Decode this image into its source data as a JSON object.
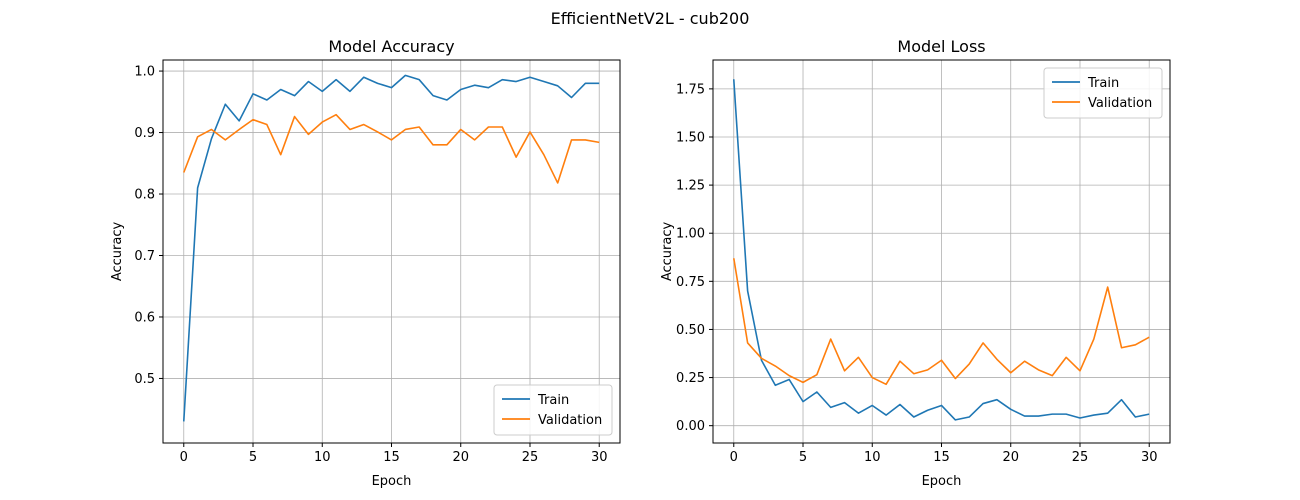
{
  "figure": {
    "title": "EfficientNetV2L - cub200"
  },
  "colors": {
    "train": "#1f77b4",
    "validation": "#ff7f0e",
    "grid": "#b0b0b0",
    "axes": "#000000"
  },
  "chart_data": [
    {
      "type": "line",
      "title": "Model Accuracy",
      "xlabel": "Epoch",
      "ylabel": "Accuracy",
      "xlim": [
        -1.5,
        31.5
      ],
      "ylim": [
        0.395,
        1.018
      ],
      "xticks": [
        0,
        5,
        10,
        15,
        20,
        25,
        30
      ],
      "yticks": [
        0.5,
        0.6,
        0.7,
        0.8,
        0.9,
        1.0
      ],
      "ytick_labels": [
        "0.5",
        "0.6",
        "0.7",
        "0.8",
        "0.9",
        "1.0"
      ],
      "grid": true,
      "legend": "lower-right",
      "x": [
        0,
        1,
        2,
        3,
        4,
        5,
        6,
        7,
        8,
        9,
        10,
        11,
        12,
        13,
        14,
        15,
        16,
        17,
        18,
        19,
        20,
        21,
        22,
        23,
        24,
        25,
        26,
        27,
        28,
        29,
        30
      ],
      "series": [
        {
          "name": "Train",
          "color": "#1f77b4",
          "values": [
            0.43,
            0.81,
            0.89,
            0.946,
            0.919,
            0.963,
            0.953,
            0.97,
            0.96,
            0.983,
            0.967,
            0.986,
            0.967,
            0.99,
            0.98,
            0.973,
            0.993,
            0.986,
            0.96,
            0.953,
            0.97,
            0.977,
            0.973,
            0.986,
            0.983,
            0.99,
            0.983,
            0.976,
            0.957,
            0.98,
            0.98
          ]
        },
        {
          "name": "Validation",
          "color": "#ff7f0e",
          "values": [
            0.835,
            0.893,
            0.905,
            0.888,
            0.905,
            0.921,
            0.913,
            0.864,
            0.926,
            0.897,
            0.917,
            0.929,
            0.905,
            0.913,
            0.901,
            0.888,
            0.905,
            0.909,
            0.88,
            0.88,
            0.905,
            0.888,
            0.909,
            0.909,
            0.86,
            0.901,
            0.864,
            0.818,
            0.888,
            0.888,
            0.884
          ]
        }
      ]
    },
    {
      "type": "line",
      "title": "Model Loss",
      "xlabel": "Epoch",
      "ylabel": "Accuracy",
      "xlim": [
        -1.5,
        31.5
      ],
      "ylim": [
        -0.09,
        1.9
      ],
      "xticks": [
        0,
        5,
        10,
        15,
        20,
        25,
        30
      ],
      "yticks": [
        0.0,
        0.25,
        0.5,
        0.75,
        1.0,
        1.25,
        1.5,
        1.75
      ],
      "ytick_labels": [
        "0.00",
        "0.25",
        "0.50",
        "0.75",
        "1.00",
        "1.25",
        "1.50",
        "1.75"
      ],
      "grid": true,
      "legend": "upper-right",
      "x": [
        0,
        1,
        2,
        3,
        4,
        5,
        6,
        7,
        8,
        9,
        10,
        11,
        12,
        13,
        14,
        15,
        16,
        17,
        18,
        19,
        20,
        21,
        22,
        23,
        24,
        25,
        26,
        27,
        28,
        29,
        30
      ],
      "series": [
        {
          "name": "Train",
          "color": "#1f77b4",
          "values": [
            1.8,
            0.7,
            0.34,
            0.21,
            0.24,
            0.125,
            0.175,
            0.095,
            0.12,
            0.065,
            0.105,
            0.055,
            0.11,
            0.045,
            0.08,
            0.105,
            0.03,
            0.045,
            0.115,
            0.135,
            0.085,
            0.05,
            0.05,
            0.06,
            0.06,
            0.04,
            0.055,
            0.065,
            0.135,
            0.045,
            0.06
          ]
        },
        {
          "name": "Validation",
          "color": "#ff7f0e",
          "values": [
            0.87,
            0.43,
            0.35,
            0.31,
            0.26,
            0.225,
            0.265,
            0.45,
            0.285,
            0.355,
            0.25,
            0.215,
            0.335,
            0.27,
            0.29,
            0.34,
            0.245,
            0.32,
            0.43,
            0.345,
            0.275,
            0.335,
            0.29,
            0.26,
            0.355,
            0.285,
            0.45,
            0.72,
            0.405,
            0.42,
            0.46
          ]
        }
      ]
    }
  ]
}
